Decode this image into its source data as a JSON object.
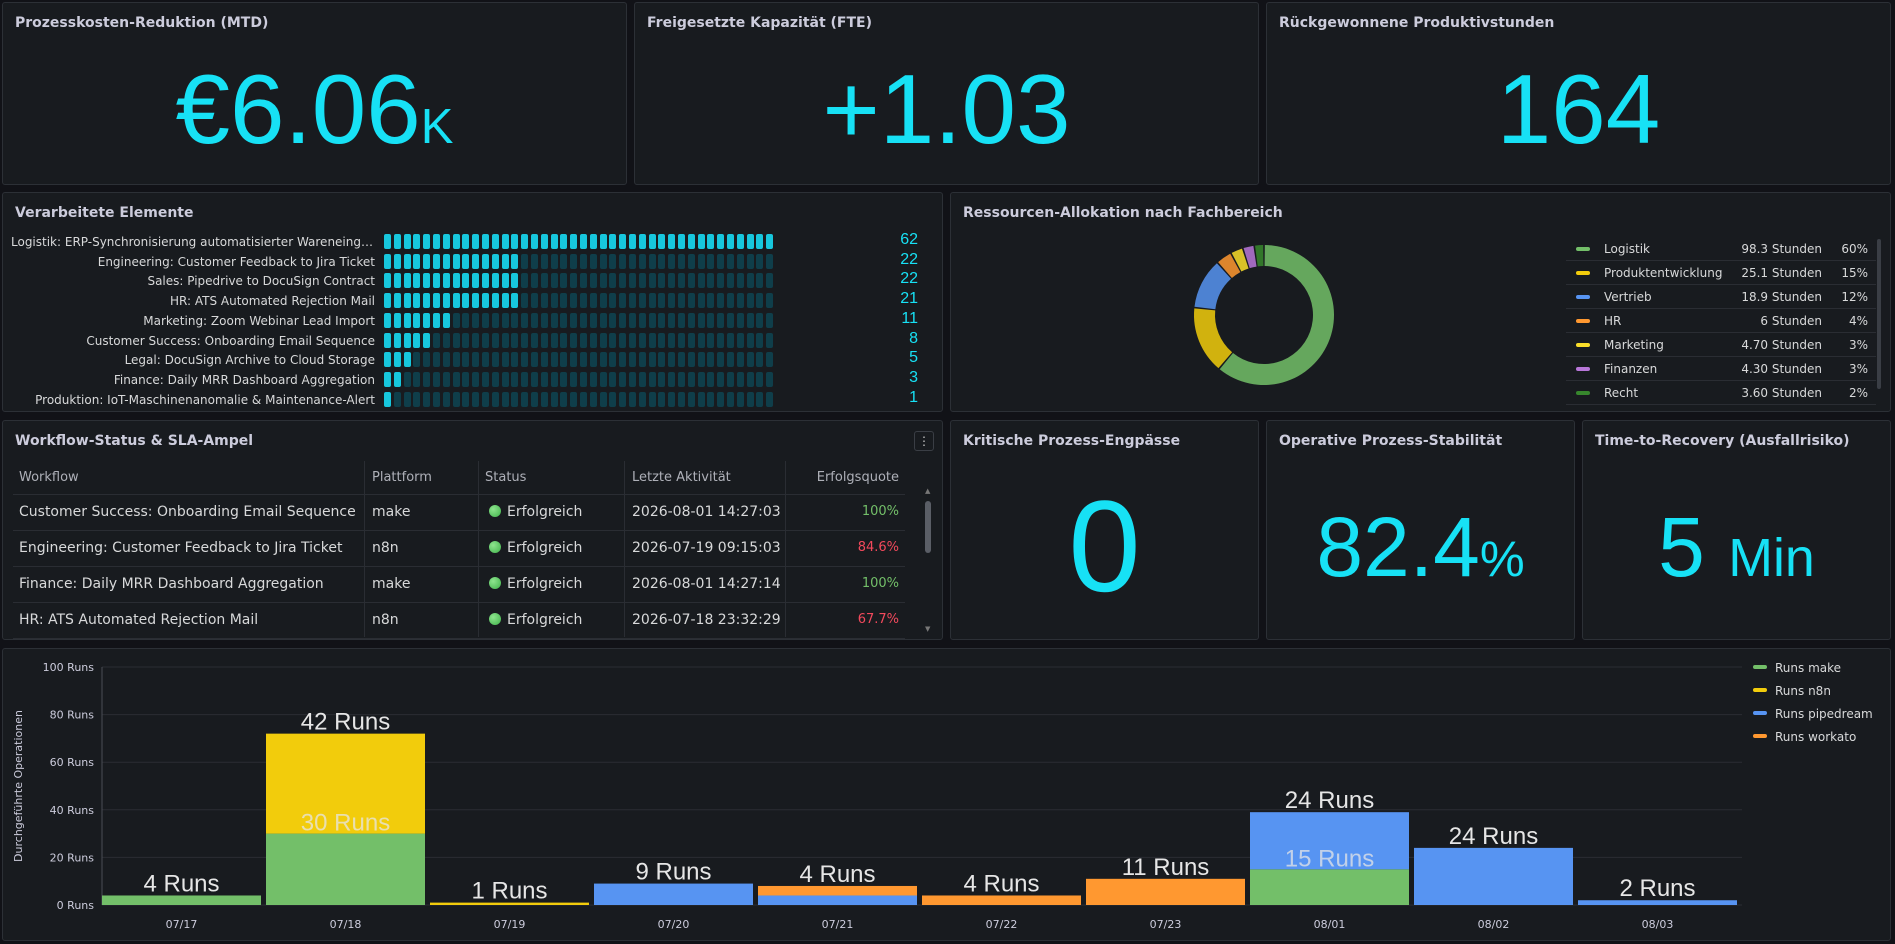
{
  "stats": {
    "cost": {
      "title": "Prozesskosten-Reduktion (MTD)",
      "value": "€6.06",
      "unit": "K"
    },
    "fte": {
      "title": "Freigesetzte Kapazität (FTE)",
      "value": "+1.03"
    },
    "hours": {
      "title": "Rückgewonnene Produktivstunden",
      "value": "164"
    },
    "bottleneck": {
      "title": "Kritische Prozess-Engpässe",
      "value": "0"
    },
    "stability": {
      "title": "Operative Prozess-Stabilität",
      "value": "82.4",
      "unit": "%"
    },
    "recovery": {
      "title": "Time-to-Recovery (Ausfallrisiko)",
      "value": "5",
      "unit": "Min"
    }
  },
  "processed": {
    "title": "Verarbeitete Elemente",
    "max": 62,
    "rows": [
      {
        "label": "Logistik: ERP-Synchronisierung automatisierter Wareneingä...",
        "value": 62
      },
      {
        "label": "Engineering: Customer Feedback to Jira Ticket",
        "value": 22
      },
      {
        "label": "Sales: Pipedrive to DocuSign Contract",
        "value": 22
      },
      {
        "label": "HR: ATS Automated Rejection Mail",
        "value": 21
      },
      {
        "label": "Marketing: Zoom Webinar Lead Import",
        "value": 11
      },
      {
        "label": "Customer Success: Onboarding Email Sequence",
        "value": 8
      },
      {
        "label": "Legal: DocuSign Archive to Cloud Storage",
        "value": 5
      },
      {
        "label": "Finance: Daily MRR Dashboard Aggregation",
        "value": 3
      },
      {
        "label": "Produktion: IoT-Maschinenanomalie & Maintenance-Alert",
        "value": 1
      }
    ]
  },
  "allocation": {
    "title": "Ressourcen-Allokation nach Fachbereich",
    "items": [
      {
        "name": "Logistik",
        "hours": "98.3 Stunden",
        "pct": "60%",
        "value": 98.3,
        "color": "#73bf69"
      },
      {
        "name": "Produktentwicklung",
        "hours": "25.1 Stunden",
        "pct": "15%",
        "value": 25.1,
        "color": "#f2cc0c"
      },
      {
        "name": "Vertrieb",
        "hours": "18.9 Stunden",
        "pct": "12%",
        "value": 18.9,
        "color": "#5794f2"
      },
      {
        "name": "HR",
        "hours": "6 Stunden",
        "pct": "4%",
        "value": 6,
        "color": "#ff9830"
      },
      {
        "name": "Marketing",
        "hours": "4.70 Stunden",
        "pct": "3%",
        "value": 4.7,
        "color": "#fade2a"
      },
      {
        "name": "Finanzen",
        "hours": "4.30 Stunden",
        "pct": "3%",
        "value": 4.3,
        "color": "#b877d9"
      },
      {
        "name": "Recht",
        "hours": "3.60 Stunden",
        "pct": "2%",
        "value": 3.6,
        "color": "#37872d"
      }
    ]
  },
  "workflow": {
    "title": "Workflow-Status & SLA-Ampel",
    "headers": [
      "Workflow",
      "Plattform",
      "Status",
      "Letzte Aktivität",
      "Erfolgsquote"
    ],
    "rows": [
      {
        "workflow": "Customer Success: Onboarding Email Sequence",
        "platform": "make",
        "status": "Erfolgreich",
        "last": "2026-08-01 14:27:03",
        "rate": "100%",
        "rate_color": "#73bf69"
      },
      {
        "workflow": "Engineering: Customer Feedback to Jira Ticket",
        "platform": "n8n",
        "status": "Erfolgreich",
        "last": "2026-07-19 09:15:03",
        "rate": "84.6%",
        "rate_color": "#f2495c"
      },
      {
        "workflow": "Finance: Daily MRR Dashboard Aggregation",
        "platform": "make",
        "status": "Erfolgreich",
        "last": "2026-08-01 14:27:14",
        "rate": "100%",
        "rate_color": "#73bf69"
      },
      {
        "workflow": "HR: ATS Automated Rejection Mail",
        "platform": "n8n",
        "status": "Erfolgreich",
        "last": "2026-07-18 23:32:29",
        "rate": "67.7%",
        "rate_color": "#f2495c"
      }
    ]
  },
  "chart_data": {
    "type": "bar",
    "stacked": true,
    "categories": [
      "07/17",
      "07/18",
      "07/19",
      "07/20",
      "07/21",
      "07/22",
      "07/23",
      "08/01",
      "08/02",
      "08/03"
    ],
    "series": [
      {
        "name": "Runs make",
        "color": "#73bf69",
        "values": [
          4,
          30,
          0,
          0,
          0,
          0,
          0,
          15,
          0,
          0
        ]
      },
      {
        "name": "Runs n8n",
        "color": "#f2cc0c",
        "values": [
          0,
          42,
          1,
          0,
          0,
          0,
          0,
          0,
          0,
          0
        ]
      },
      {
        "name": "Runs pipedream",
        "color": "#5794f2",
        "values": [
          0,
          0,
          0,
          9,
          4,
          0,
          0,
          24,
          24,
          2
        ]
      },
      {
        "name": "Runs workato",
        "color": "#ff9830",
        "values": [
          0,
          0,
          0,
          0,
          4,
          4,
          11,
          0,
          0,
          0
        ]
      }
    ],
    "bar_labels": [
      [
        "4 Runs"
      ],
      [
        "30 Runs",
        "42 Runs"
      ],
      [
        "1 Runs"
      ],
      [
        "9 Runs"
      ],
      [
        "4 Runs"
      ],
      [
        "4 Runs"
      ],
      [
        "11 Runs"
      ],
      [
        "15 Runs",
        "24 Runs"
      ],
      [
        "24 Runs"
      ],
      [
        "2 Runs"
      ]
    ],
    "ylabel": "Durchgeführte Operationen",
    "yticks": [
      "0 Runs",
      "20 Runs",
      "40 Runs",
      "60 Runs",
      "80 Runs",
      "100 Runs"
    ],
    "ylim": [
      0,
      100
    ],
    "legend_position": "top-right"
  }
}
